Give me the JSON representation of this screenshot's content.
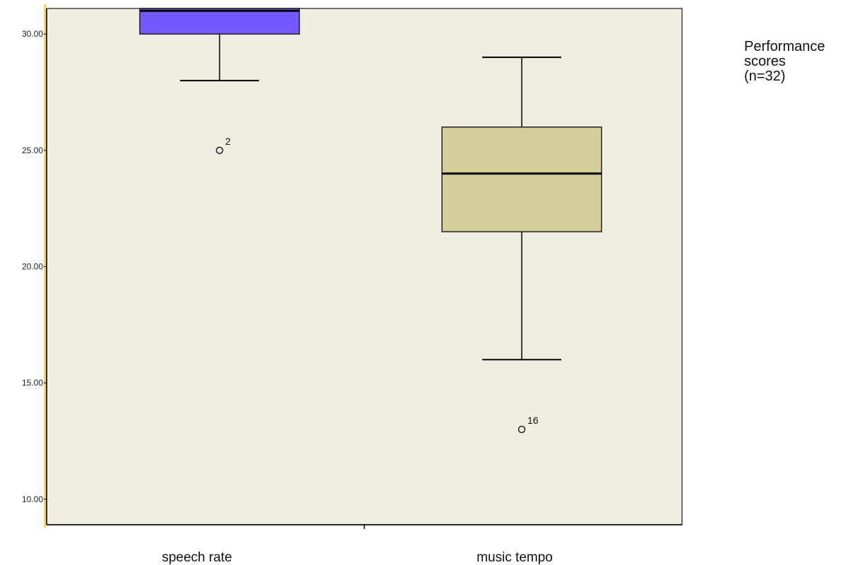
{
  "chart_data": {
    "type": "box",
    "categories": [
      "speech rate",
      "music tempo"
    ],
    "legend_text": [
      "Performance",
      "scores",
      "(n=32)"
    ],
    "ylim": [
      8.9,
      31.1
    ],
    "y_ticks": [
      {
        "value": 10,
        "label": "10.00"
      },
      {
        "value": 15,
        "label": "15.00"
      },
      {
        "value": 20,
        "label": "20.00"
      },
      {
        "value": 25,
        "label": "25.00"
      },
      {
        "value": 30,
        "label": "30.00"
      }
    ],
    "boxes": [
      {
        "name": "speech rate",
        "whisker_low": 28,
        "q1": 30,
        "median": 31,
        "q3": 31.1,
        "whisker_high": 31.1,
        "color": "#7559ff",
        "outliers": [
          {
            "value": 25,
            "label": "2"
          }
        ]
      },
      {
        "name": "music tempo",
        "whisker_low": 16,
        "q1": 21.5,
        "median": 24,
        "q3": 26,
        "whisker_high": 29,
        "color": "#d4ce9b",
        "outliers": [
          {
            "value": 13,
            "label": "16"
          }
        ]
      }
    ],
    "colors": {
      "plot_background": "#f0ede3",
      "axis": "#000000",
      "frame_highlight": "#f5d77a"
    },
    "grid": false,
    "legend_position": "top-right"
  }
}
